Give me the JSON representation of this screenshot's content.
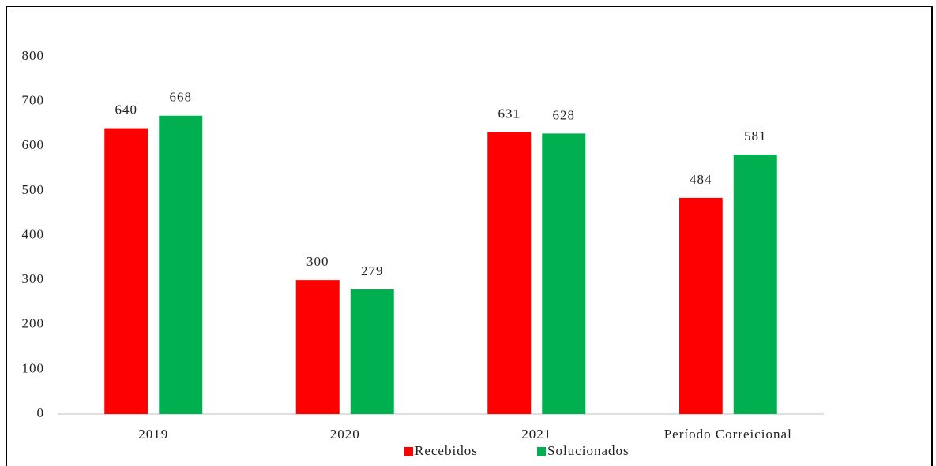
{
  "chart_data": {
    "type": "bar",
    "categories": [
      "2019",
      "2020",
      "2021",
      "Período Correicional"
    ],
    "series": [
      {
        "name": "Recebidos",
        "color": "#ff0000",
        "values": [
          640,
          300,
          631,
          484
        ]
      },
      {
        "name": "Solucionados",
        "color": "#00b050",
        "values": [
          668,
          279,
          628,
          581
        ]
      }
    ],
    "ylim": [
      0,
      800
    ],
    "yticks": [
      0,
      100,
      200,
      300,
      400,
      500,
      600,
      700,
      800
    ],
    "grid": false,
    "legend": "bottom"
  }
}
